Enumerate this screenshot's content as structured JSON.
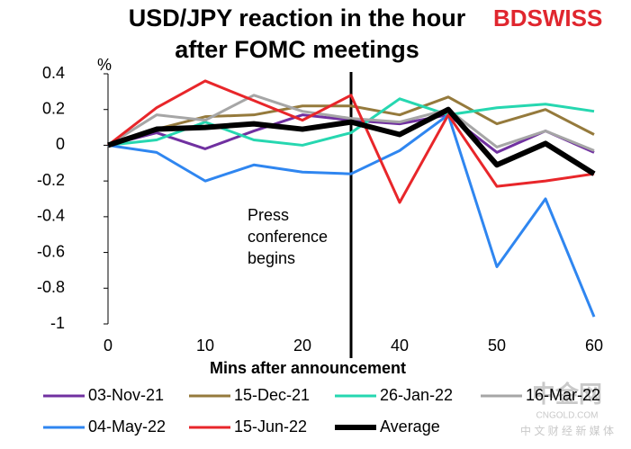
{
  "chart_data": {
    "type": "line",
    "title_lines": [
      "USD/JPY reaction in the hour",
      "after FOMC meetings"
    ],
    "logo": "BDSWISS",
    "y_unit": "%",
    "x_label": "Mins after announcement",
    "annotation": "Press conference begins",
    "watermark": [
      "中金网",
      "CNGOLD.COM",
      "中 文 财 经 新 媒 体"
    ],
    "categories": [
      "0",
      null,
      "10",
      null,
      "20",
      null,
      "40",
      null,
      "50",
      null,
      "60"
    ],
    "ylim": [
      -1,
      0.4
    ],
    "yticks": [
      0.4,
      0.2,
      0,
      -0.2,
      -0.4,
      -0.6,
      -0.8,
      -1
    ],
    "series": [
      {
        "name": "03-Nov-21",
        "color": "#7030a0",
        "width": 3,
        "values": [
          0,
          0.07,
          -0.02,
          0.08,
          0.17,
          0.14,
          0.12,
          0.17,
          -0.04,
          0.08,
          -0.04
        ]
      },
      {
        "name": "15-Dec-21",
        "color": "#957a3c",
        "width": 3,
        "values": [
          0,
          0.09,
          0.16,
          0.17,
          0.22,
          0.22,
          0.17,
          0.27,
          0.12,
          0.2,
          0.06
        ]
      },
      {
        "name": "26-Jan-22",
        "color": "#26d7b0",
        "width": 3,
        "values": [
          0,
          0.03,
          0.13,
          0.03,
          0,
          0.07,
          0.26,
          0.17,
          0.21,
          0.23,
          0.19
        ]
      },
      {
        "name": "16-Mar-22",
        "color": "#a6a6a6",
        "width": 3,
        "values": [
          0,
          0.17,
          0.14,
          0.28,
          0.19,
          0.15,
          0.13,
          0.2,
          -0.01,
          0.08,
          -0.03
        ]
      },
      {
        "name": "04-May-22",
        "color": "#2f86f0",
        "width": 3,
        "values": [
          0,
          -0.04,
          -0.2,
          -0.11,
          -0.15,
          -0.16,
          -0.03,
          0.17,
          -0.68,
          -0.3,
          -0.96
        ]
      },
      {
        "name": "15-Jun-22",
        "color": "#e8262a",
        "width": 3,
        "values": [
          0,
          0.21,
          0.36,
          0.25,
          0.14,
          0.28,
          -0.32,
          0.17,
          -0.23,
          -0.2,
          -0.16
        ]
      },
      {
        "name": "Average",
        "color": "#000000",
        "width": 6,
        "values": [
          0,
          0.09,
          0.1,
          0.12,
          0.09,
          0.13,
          0.06,
          0.2,
          -0.11,
          0.01,
          -0.16
        ]
      }
    ]
  }
}
